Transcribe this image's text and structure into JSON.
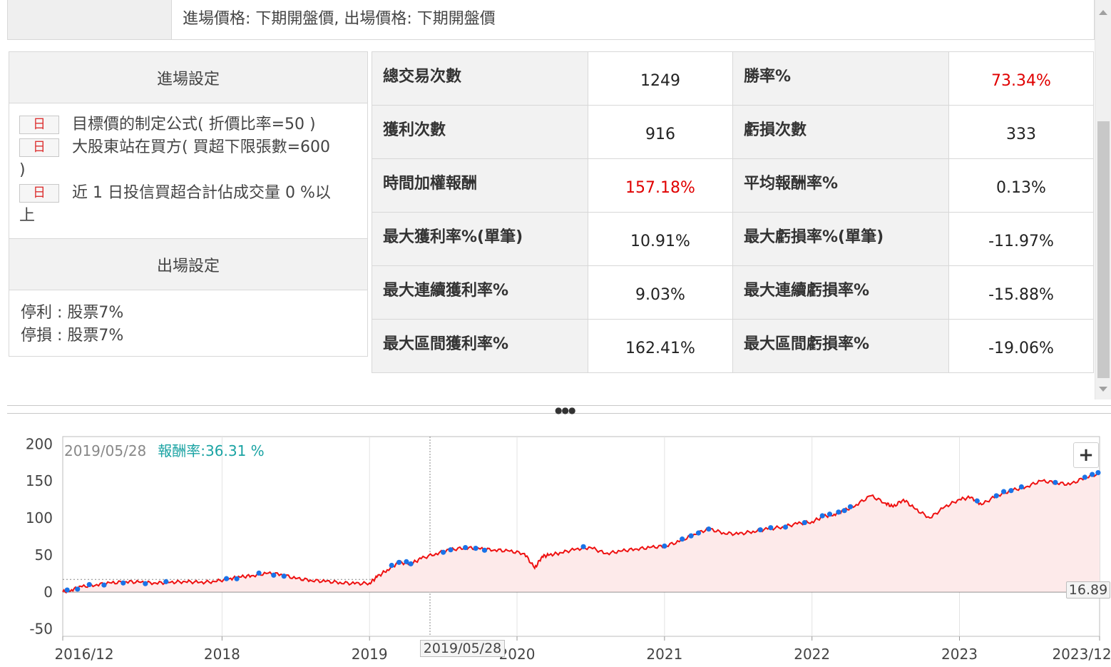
{
  "header": {
    "price_rule": "進場價格: 下期開盤價, 出場價格: 下期開盤價"
  },
  "settings": {
    "entry_title": "進場設定",
    "entry_conditions": [
      {
        "badge": "日",
        "text": "目標價的制定公式( 折價比率=50 )"
      },
      {
        "badge": "日",
        "text": "大股東站在買方( 買超下限張數=600",
        "text_wrap": ")"
      },
      {
        "badge": "日",
        "text": "近 1 日投信買超合計佔成交量 0 %以",
        "text_wrap": "上"
      }
    ],
    "exit_title": "出場設定",
    "exit_rules": [
      "停利 : 股票7%",
      "停損 : 股票7%"
    ]
  },
  "stats": {
    "rows": [
      {
        "l1": "總交易次數",
        "v1": "1249",
        "l2": "勝率%",
        "v2": "73.34%",
        "v1_red": false,
        "v2_red": true
      },
      {
        "l1": "獲利次數",
        "v1": "916",
        "l2": "虧損次數",
        "v2": "333",
        "v1_red": false,
        "v2_red": false
      },
      {
        "l1": "時間加權報酬",
        "v1": "157.18%",
        "l2": "平均報酬率%",
        "v2": "0.13%",
        "v1_red": true,
        "v2_red": false
      },
      {
        "l1": "最大獲利率%(單筆)",
        "v1": "10.91%",
        "l2": "最大虧損率%(單筆)",
        "v2": "-11.97%",
        "v1_red": false,
        "v2_red": false
      },
      {
        "l1": "最大連續獲利率%",
        "v1": "9.03%",
        "l2": "最大連續虧損率%",
        "v2": "-15.88%",
        "v1_red": false,
        "v2_red": false
      },
      {
        "l1": "最大區間獲利率%",
        "v1": "162.41%",
        "l2": "最大區間虧損率%",
        "v2": "-19.06%",
        "v1_red": false,
        "v2_red": false
      }
    ]
  },
  "chart": {
    "legend_date": "2019/05/28",
    "legend_label": "報酬率:",
    "legend_value": "36.31 %",
    "zoom_label": "+",
    "last_value_tag": "16.89",
    "crosshair_date_tag": "2019/05/28",
    "colors": {
      "line": "#ee1111",
      "marker": "#1a73e8",
      "fill": "#fdeaea",
      "legend": "#1aa3a3"
    }
  },
  "chart_data": {
    "type": "line",
    "ylim": [
      -60,
      210
    ],
    "y_ticks": [
      "200",
      "150",
      "100",
      "50",
      "0",
      "-50"
    ],
    "y_tick_values": [
      200,
      150,
      100,
      50,
      0,
      -50
    ],
    "x_ticks": [
      "2016/12",
      "2018",
      "2019",
      "2020",
      "2021",
      "2022",
      "2023",
      "2023/12"
    ],
    "x_tick_years": [
      2016.92,
      2018.0,
      2019.0,
      2020.0,
      2021.0,
      2022.0,
      2023.0,
      2023.95
    ],
    "xlim": [
      2016.92,
      2023.95
    ],
    "reference_value": 16.89,
    "crosshair_x": 2019.41,
    "series": [
      {
        "x": [
          2016.92,
          2016.98,
          2017.05,
          2017.15,
          2017.25,
          2017.35,
          2017.45,
          2017.55,
          2017.65,
          2017.75,
          2017.85,
          2017.95,
          2018.05,
          2018.12,
          2018.2,
          2018.3,
          2018.4,
          2018.5,
          2018.6,
          2018.7,
          2018.8,
          2018.9,
          2019.0,
          2019.05,
          2019.12,
          2019.2,
          2019.28,
          2019.35,
          2019.45,
          2019.55,
          2019.65,
          2019.75,
          2019.85,
          2019.95,
          2020.05,
          2020.12,
          2020.17,
          2020.22,
          2020.3,
          2020.4,
          2020.5,
          2020.6,
          2020.7,
          2020.8,
          2020.9,
          2021.0,
          2021.1,
          2021.2,
          2021.3,
          2021.4,
          2021.5,
          2021.6,
          2021.7,
          2021.8,
          2021.9,
          2022.0,
          2022.08,
          2022.15,
          2022.22,
          2022.3,
          2022.4,
          2022.5,
          2022.55,
          2022.62,
          2022.7,
          2022.8,
          2022.9,
          2023.0,
          2023.08,
          2023.15,
          2023.25,
          2023.35,
          2023.45,
          2023.55,
          2023.65,
          2023.75,
          2023.85,
          2023.95
        ],
        "y": [
          0,
          3,
          7,
          10,
          12,
          14,
          13,
          12,
          13,
          14,
          13,
          14,
          18,
          20,
          22,
          25,
          24,
          18,
          16,
          14,
          13,
          11,
          12,
          20,
          30,
          40,
          38,
          45,
          52,
          57,
          60,
          58,
          57,
          55,
          52,
          32,
          48,
          50,
          53,
          58,
          60,
          52,
          55,
          58,
          60,
          62,
          68,
          78,
          85,
          80,
          78,
          82,
          85,
          88,
          92,
          95,
          102,
          105,
          110,
          118,
          130,
          120,
          115,
          125,
          112,
          100,
          115,
          125,
          128,
          118,
          130,
          137,
          142,
          150,
          148,
          145,
          155,
          160
        ]
      }
    ],
    "marker_x": [
      2016.95,
      2017.02,
      2017.1,
      2017.2,
      2017.33,
      2017.48,
      2017.62,
      2018.03,
      2018.1,
      2018.25,
      2018.35,
      2018.42,
      2019.15,
      2019.2,
      2019.25,
      2019.28,
      2019.5,
      2019.55,
      2019.65,
      2019.72,
      2019.78,
      2020.45,
      2021.0,
      2021.12,
      2021.18,
      2021.23,
      2021.3,
      2021.65,
      2021.72,
      2021.82,
      2021.95,
      2022.07,
      2022.12,
      2022.18,
      2022.22,
      2022.26,
      2023.12,
      2023.25,
      2023.3,
      2023.35,
      2023.42,
      2023.65,
      2023.85,
      2023.9,
      2023.94
    ]
  }
}
